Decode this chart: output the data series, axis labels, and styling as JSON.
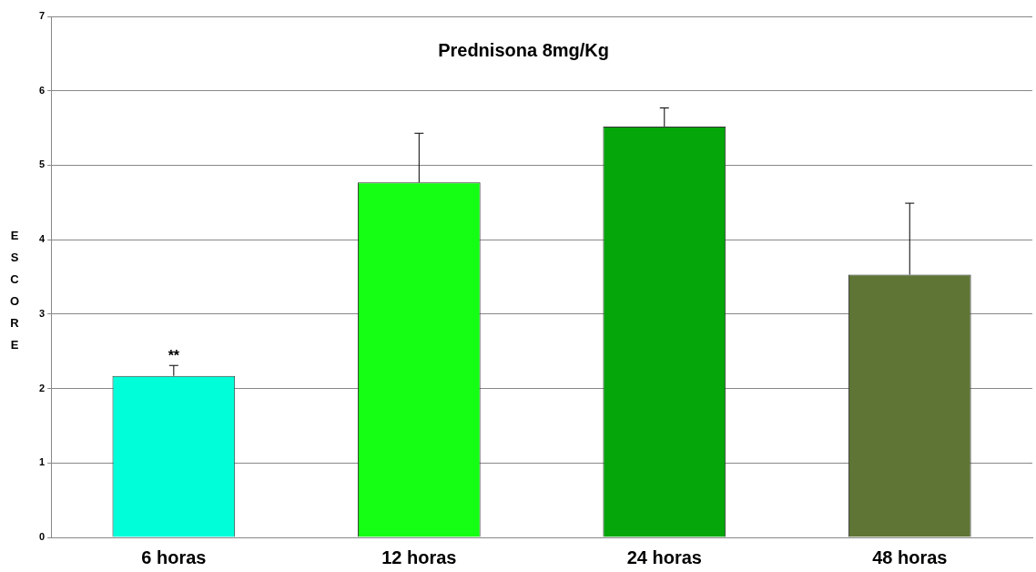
{
  "chart_data": {
    "type": "bar",
    "title": "Prednisona 8mg/Kg",
    "ylabel": "ESCORE",
    "categories": [
      "6 horas",
      "12 horas",
      "24 horas",
      "48 horas"
    ],
    "values": [
      2.17,
      4.77,
      5.52,
      3.53
    ],
    "colors": [
      "#00ffd8",
      "#14ff14",
      "#04a60a",
      "#5f7535"
    ],
    "errors": [
      [
        2.17,
        2.31
      ],
      [
        4.77,
        5.43
      ],
      [
        5.52,
        5.77
      ],
      [
        3.53,
        4.49
      ]
    ],
    "annotations": [
      "**"
    ],
    "ylim": [
      0,
      7
    ],
    "yticks": [
      0,
      1,
      2,
      3,
      4,
      5,
      6,
      7
    ],
    "grid": "y",
    "legend": false
  }
}
